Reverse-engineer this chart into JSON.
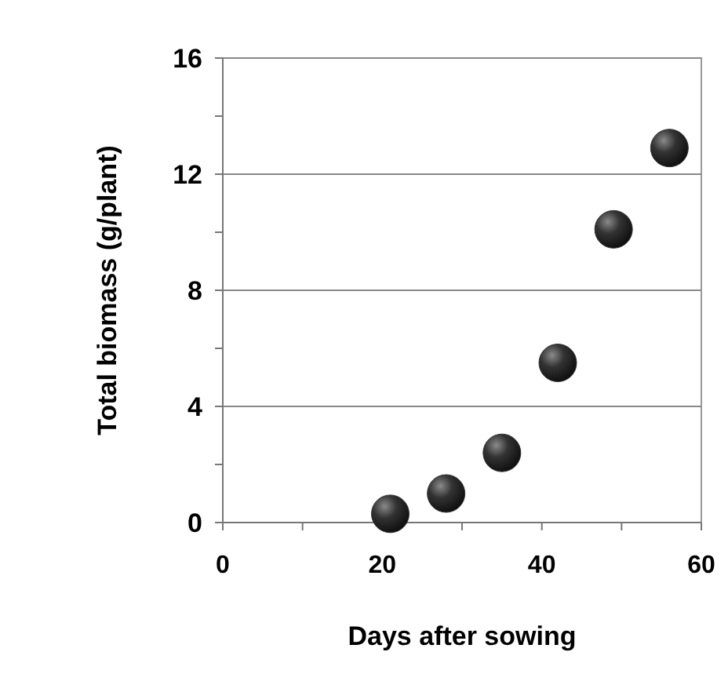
{
  "chart_data": {
    "type": "scatter",
    "xlabel": "Days after sowing",
    "ylabel": "Total biomass (g/plant)",
    "x": [
      21,
      28,
      35,
      42,
      49,
      56
    ],
    "values": [
      0.3,
      1.0,
      2.4,
      5.5,
      10.1,
      12.9
    ],
    "color": "#333333",
    "marker": "circle",
    "xlim": [
      0,
      60
    ],
    "xticks": [
      0,
      {
        "value": 10,
        "label": null
      },
      20,
      {
        "value": 30,
        "label": null
      },
      40,
      {
        "value": 50,
        "label": null
      },
      60
    ],
    "ylim": [
      0,
      16
    ],
    "yticks": [
      0,
      {
        "value": 2,
        "label": null
      },
      4,
      {
        "value": 6,
        "label": null
      },
      8,
      {
        "value": 10,
        "label": null
      },
      12,
      {
        "value": 14,
        "label": null
      },
      16
    ],
    "grid": "y"
  }
}
